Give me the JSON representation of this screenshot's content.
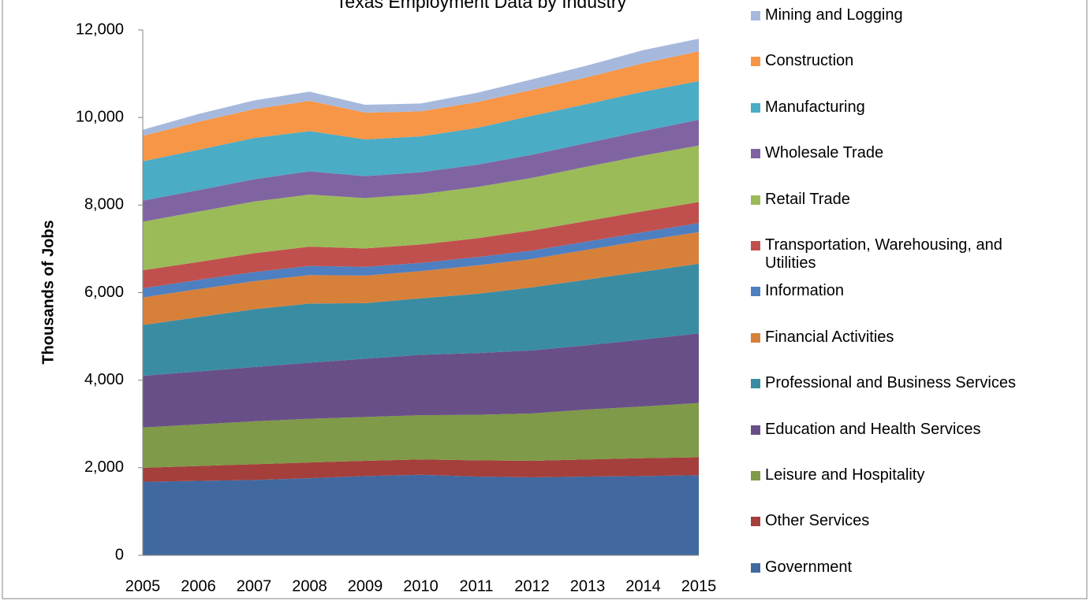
{
  "chart_data": {
    "type": "stacked_area",
    "title": "Texas Employment Data by Industry",
    "ylabel": "Thousands of Jobs",
    "categories": [
      "2005",
      "2006",
      "2007",
      "2008",
      "2009",
      "2010",
      "2011",
      "2012",
      "2013",
      "2014",
      "2015"
    ],
    "ylim": [
      0,
      12000
    ],
    "yticks": [
      0,
      {
        "value": 2000,
        "label": "2,000"
      },
      {
        "value": 4000,
        "label": "4,000"
      },
      {
        "value": 6000,
        "label": "6,000"
      },
      {
        "value": 8000,
        "label": "8,000"
      },
      {
        "value": 10000,
        "label": "10,000"
      },
      {
        "value": 12000,
        "label": "12,000"
      }
    ],
    "legend": "right",
    "series": [
      {
        "name": "Government",
        "color": "#41699f",
        "values": [
          1680,
          1700,
          1720,
          1760,
          1810,
          1840,
          1800,
          1780,
          1800,
          1810,
          1830
        ]
      },
      {
        "name": "Other Services",
        "color": "#a43f3c",
        "values": [
          320,
          340,
          360,
          360,
          350,
          350,
          370,
          380,
          390,
          410,
          410
        ]
      },
      {
        "name": "Leisure and Hospitality",
        "color": "#7f9a48",
        "values": [
          920,
          950,
          980,
          1000,
          1000,
          1010,
          1040,
          1080,
          1140,
          1180,
          1240
        ]
      },
      {
        "name": "Education and Health Services",
        "color": "#694f87",
        "values": [
          1180,
          1210,
          1240,
          1280,
          1330,
          1380,
          1410,
          1440,
          1470,
          1530,
          1590
        ]
      },
      {
        "name": "Professional and Business Services",
        "color": "#3a8ca3",
        "values": [
          1160,
          1240,
          1320,
          1350,
          1270,
          1290,
          1350,
          1440,
          1500,
          1550,
          1590
        ]
      },
      {
        "name": "Financial Activities",
        "color": "#d7803a",
        "values": [
          630,
          640,
          640,
          650,
          630,
          620,
          650,
          650,
          680,
          710,
          720
        ]
      },
      {
        "name": "Information",
        "color": "#4e7fc0",
        "values": [
          210,
          210,
          210,
          210,
          200,
          190,
          190,
          190,
          190,
          190,
          210
        ]
      },
      {
        "name": "Transportation, Warehousing, and Utilities",
        "color": "#c0504d",
        "values": [
          410,
          410,
          430,
          440,
          420,
          420,
          430,
          460,
          470,
          480,
          480
        ]
      },
      {
        "name": "Retail Trade",
        "color": "#9bbb59",
        "values": [
          1110,
          1150,
          1180,
          1190,
          1150,
          1150,
          1170,
          1200,
          1240,
          1270,
          1290
        ]
      },
      {
        "name": "Wholesale Trade",
        "color": "#8064a2",
        "values": [
          480,
          490,
          510,
          530,
          500,
          500,
          510,
          530,
          540,
          560,
          590
        ]
      },
      {
        "name": "Manufacturing",
        "color": "#4bacc6",
        "values": [
          900,
          920,
          940,
          920,
          840,
          820,
          840,
          890,
          890,
          900,
          880
        ]
      },
      {
        "name": "Construction",
        "color": "#f79646",
        "values": [
          580,
          640,
          660,
          690,
          610,
          570,
          590,
          590,
          610,
          650,
          680
        ]
      },
      {
        "name": "Mining and Logging",
        "color": "#a6b9dd",
        "values": [
          140,
          180,
          200,
          210,
          180,
          180,
          210,
          240,
          270,
          300,
          290
        ]
      }
    ]
  }
}
